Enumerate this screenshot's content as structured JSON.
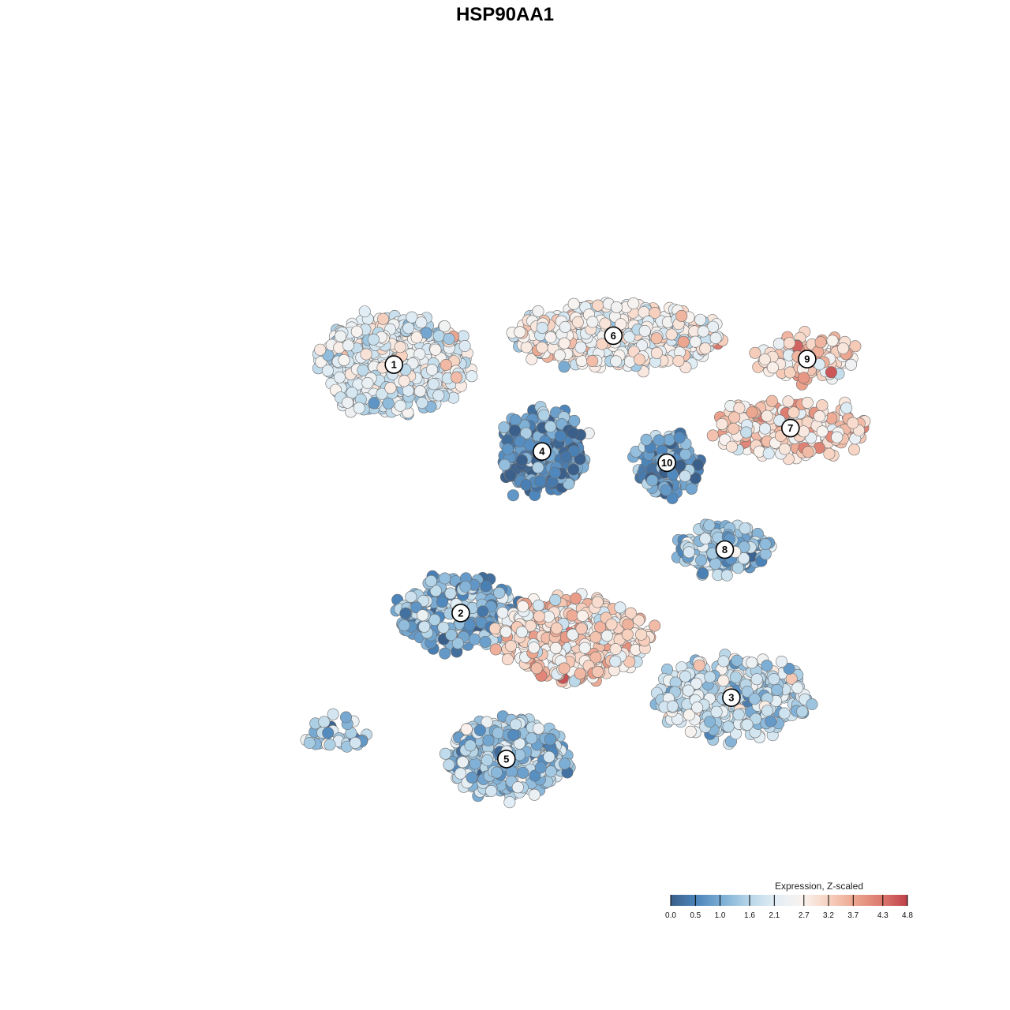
{
  "chart_data": {
    "type": "scatter",
    "title": "HSP90AA1",
    "point_shape": "circle",
    "color_scale": {
      "title": "Expression, Z-scaled",
      "min": 0.0,
      "max": 4.8,
      "ticks": [
        "0.0",
        "0.5",
        "1.0",
        "1.6",
        "2.1",
        "2.7",
        "3.2",
        "3.7",
        "4.3",
        "4.8"
      ],
      "tick_values": [
        0.0,
        0.5,
        1.0,
        1.6,
        2.1,
        2.7,
        3.2,
        3.7,
        4.3,
        4.8
      ],
      "colors": [
        "#3a5f8a",
        "#4d86bc",
        "#7fb0d6",
        "#b7d6e8",
        "#e3eef5",
        "#f9f3ef",
        "#f7d2c0",
        "#eca58e",
        "#dc7a6f",
        "#c0404a"
      ],
      "legend_position": "bottom-right"
    },
    "clusters": [
      {
        "label": "1",
        "x": -12.1,
        "y": 12.6,
        "spread": [
          6.4,
          4.1
        ],
        "n": 520,
        "mean_expr": 2.2
      },
      {
        "label": "6",
        "x": 7.6,
        "y": 15.2,
        "spread": [
          9.0,
          2.6
        ],
        "n": 420,
        "mean_expr": 2.55
      },
      {
        "label": "9",
        "x": 25.0,
        "y": 13.1,
        "spread": [
          4.2,
          1.8
        ],
        "n": 110,
        "mean_expr": 3.05
      },
      {
        "label": "7",
        "x": 23.5,
        "y": 6.9,
        "spread": [
          6.6,
          2.1
        ],
        "n": 200,
        "mean_expr": 3.1
      },
      {
        "label": "4",
        "x": 1.2,
        "y": 4.8,
        "spread": [
          3.6,
          3.4
        ],
        "n": 360,
        "mean_expr": 0.7
      },
      {
        "label": "10",
        "x": 12.4,
        "y": 3.8,
        "spread": [
          2.4,
          2.6
        ],
        "n": 130,
        "mean_expr": 0.8
      },
      {
        "label": "8",
        "x": 17.6,
        "y": -4.0,
        "spread": [
          4.0,
          1.9
        ],
        "n": 160,
        "mean_expr": 1.45
      },
      {
        "label": "2",
        "x": -6.1,
        "y": -9.7,
        "spread": [
          5.2,
          3.0
        ],
        "n": 230,
        "mean_expr": 1.1
      },
      {
        "label": "3",
        "x": 18.2,
        "y": -17.3,
        "spread": [
          6.6,
          3.3
        ],
        "n": 380,
        "mean_expr": 1.75
      },
      {
        "label": "5",
        "x": -2.0,
        "y": -22.8,
        "spread": [
          5.2,
          3.2
        ],
        "n": 420,
        "mean_expr": 1.35
      },
      {
        "label": "",
        "x": 3.8,
        "y": -11.9,
        "spread": [
          6.6,
          3.4
        ],
        "n": 420,
        "mean_expr": 3.0
      },
      {
        "label": "",
        "x": -17.4,
        "y": -20.4,
        "spread": [
          3.0,
          1.3
        ],
        "n": 35,
        "mean_expr": 1.6
      }
    ],
    "xlim": [
      -34,
      34
    ],
    "ylim": [
      -34,
      34
    ],
    "grid": false
  }
}
